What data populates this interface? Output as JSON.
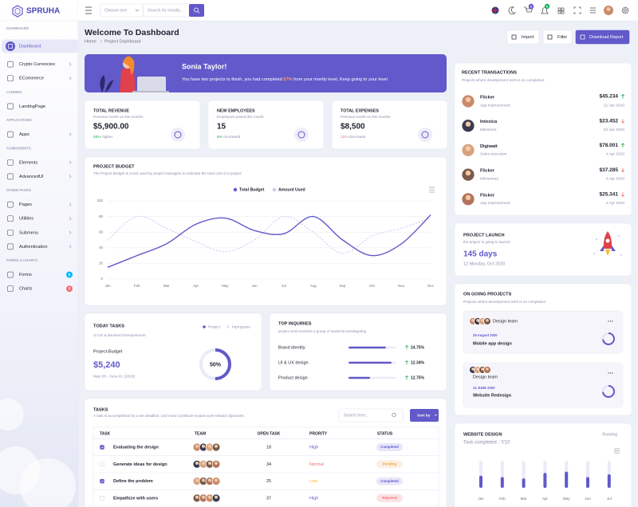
{
  "sidebar": {
    "brand": "SPRUHA",
    "sections": [
      {
        "title": "DASHBOARD",
        "items": [
          {
            "label": "Dashboard",
            "active": true
          },
          {
            "label": "Crypto Currencies",
            "arrow": true
          },
          {
            "label": "ECommerce",
            "arrow": true
          }
        ]
      },
      {
        "title": "LANDING",
        "items": [
          {
            "label": "LandingPage"
          }
        ]
      },
      {
        "title": "APPLICATIONS",
        "items": [
          {
            "label": "Apps",
            "arrow": true
          }
        ]
      },
      {
        "title": "COMPONENTS",
        "items": [
          {
            "label": "Elements",
            "arrow": true
          },
          {
            "label": "AdvancedUI",
            "arrow": true
          }
        ]
      },
      {
        "title": "OTHER PAGES",
        "items": [
          {
            "label": "Pages",
            "arrow": true
          },
          {
            "label": "Utilities",
            "arrow": true
          },
          {
            "label": "Submenu",
            "arrow": true
          },
          {
            "label": "Authentication",
            "arrow": true
          }
        ]
      },
      {
        "title": "FORMS & CHARTS",
        "items": [
          {
            "label": "Forms",
            "badge": 6,
            "badge_color": "#01b8ff"
          },
          {
            "label": "Charts",
            "badge": 5,
            "badge_color": "#f16d75"
          }
        ]
      }
    ]
  },
  "header": {
    "select": "Choose one",
    "search": "Search for results...",
    "cart_badge": 5,
    "bell_badge": 8
  },
  "page_header": {
    "title": "Welcome To Dashboard",
    "breadcrumb": [
      "Home",
      "Project Dashboard"
    ],
    "buttons": [
      "Import",
      "Filter",
      "Download Report"
    ]
  },
  "banner": {
    "name": "Sonia Taylor!",
    "text_before": "You have two projects to finish, you had completed ",
    "highlight": "57%",
    "text_after": " from your montly level, Keep going to your level"
  },
  "stats": [
    {
      "title": "TOTAL REVENUE",
      "subtitle": "Previous month vs this months",
      "value": "$5,900.00",
      "change": "55%",
      "change_text": " higher",
      "color": "#19b159"
    },
    {
      "title": "NEW EMPLOYEES",
      "subtitle": "Employees joined this month",
      "value": "15",
      "change": "5%",
      "change_text": " Increased",
      "color": "#19b159"
    },
    {
      "title": "TOTAL EXPENSES",
      "subtitle": "Previous month vs this months",
      "value": "$8,500",
      "change": "12%",
      "change_text": " Decrease",
      "color": "#f16d75"
    }
  ],
  "budget_chart": {
    "type": "line",
    "title": "PROJECT BUDGET",
    "subtitle": "The Project Budget is a tool used by project managers to estimate the total cost of a project",
    "categories": [
      "Jan",
      "Feb",
      "Mar",
      "Apr",
      "May",
      "Jun",
      "Jul",
      "Aug",
      "Sep",
      "Oct",
      "Nov",
      "Dec"
    ],
    "series": [
      {
        "name": "Total Budget",
        "color": "#6259ca",
        "values": [
          15,
          30,
          45,
          70,
          78,
          62,
          58,
          80,
          50,
          30,
          45,
          82
        ]
      },
      {
        "name": "Amount Used",
        "color": "#c9c5ee",
        "dashed": true,
        "values": [
          50,
          80,
          65,
          48,
          35,
          50,
          80,
          60,
          33,
          55,
          65,
          78
        ]
      }
    ],
    "ylim": [
      0,
      100
    ],
    "yticks": [
      0,
      20,
      40,
      60,
      80,
      100
    ],
    "grid": true
  },
  "today_tasks": {
    "title": "TODAY TASKS",
    "subtitle": "UI UX & Backend Devepoement",
    "legend": [
      "Project",
      "Inprogress"
    ],
    "budget_label": "Project-Budget",
    "budget": "$5,240",
    "dates": "May 28 - June 01 (2018)",
    "progress": {
      "value": 50,
      "label": "50%"
    }
  },
  "inquiries": {
    "title": "TOP INQUIRIES",
    "subtitle": "project work involves a group of students investigating",
    "rows": [
      {
        "label": "Brand identity",
        "value": "24.75%"
      },
      {
        "label": "UI & UX design",
        "value": "12.34%"
      },
      {
        "label": "Product design",
        "value": "12.75%"
      }
    ]
  },
  "tasks": {
    "title": "TASKS",
    "subtitle": "A task is accomplished by a set deadline, and must contribute toward work-related objectives.",
    "search": "Search here...",
    "sort": "Sort by",
    "columns": [
      "TASK",
      "TEAM",
      "OPEN TASK",
      "PRORITY",
      "STATUS"
    ],
    "rows": [
      {
        "task": "Evaluating the design",
        "open": 18,
        "priority": "High",
        "status": "Completed",
        "checked": true
      },
      {
        "task": "Generate ideas for design",
        "open": 34,
        "priority": "Normal",
        "status": "Pending",
        "checked": false
      },
      {
        "task": "Define the problem",
        "open": 25,
        "priority": "Low",
        "status": "Completed",
        "checked": true
      },
      {
        "task": "Empathize with users",
        "open": 37,
        "priority": "High",
        "status": "Rejected",
        "checked": false
      }
    ]
  },
  "transactions": {
    "title": "RECENT TRANSACTIONS",
    "subtitle": "Projects where development work is on completion",
    "items": [
      {
        "name": "Flicker",
        "role": "App improvement",
        "amount": "$45.234",
        "date": "12 Jan 2020",
        "trend": "up"
      },
      {
        "name": "Intoxica",
        "role": "Milestone",
        "amount": "$23.452",
        "date": "23 Jan 2020",
        "trend": "down"
      },
      {
        "name": "Digiwatt",
        "role": "Sales executive",
        "amount": "$78.001",
        "date": "4 Apr 2020",
        "trend": "up"
      },
      {
        "name": "Flicker",
        "role": "Milestone2",
        "amount": "$37.285",
        "date": "4 Apr 2020",
        "trend": "down"
      },
      {
        "name": "Flicker",
        "role": "App improvement",
        "amount": "$25.341",
        "date": "4 Apr 2020",
        "trend": "down"
      }
    ]
  },
  "launch": {
    "title": "PROJECT LAUNCH",
    "subtitle": "the project is going to launch",
    "days": "145 days",
    "date": "12 Monday, Oct 2020"
  },
  "ongoing": {
    "title": "ON GOING PROJECTS",
    "subtitle": "Projects where development work is on completion",
    "projects": [
      {
        "team": "Design team",
        "date": "25 August 2020",
        "name": "Mobile app design"
      },
      {
        "team": "Design team",
        "date": "12 JUNE 2020",
        "name": "Website Redesign"
      }
    ]
  },
  "website_chart": {
    "type": "bar",
    "title": "WEBSITE DESIGN",
    "status": "Running",
    "subtitle": "Task completed : 7/10",
    "categories": [
      "Jan",
      "Feb",
      "Mar",
      "Apr",
      "May",
      "Jun",
      "Jul"
    ],
    "values": [
      45,
      40,
      35,
      55,
      60,
      40,
      50
    ],
    "color": "#6259ca",
    "ylim": [
      0,
      100
    ]
  }
}
